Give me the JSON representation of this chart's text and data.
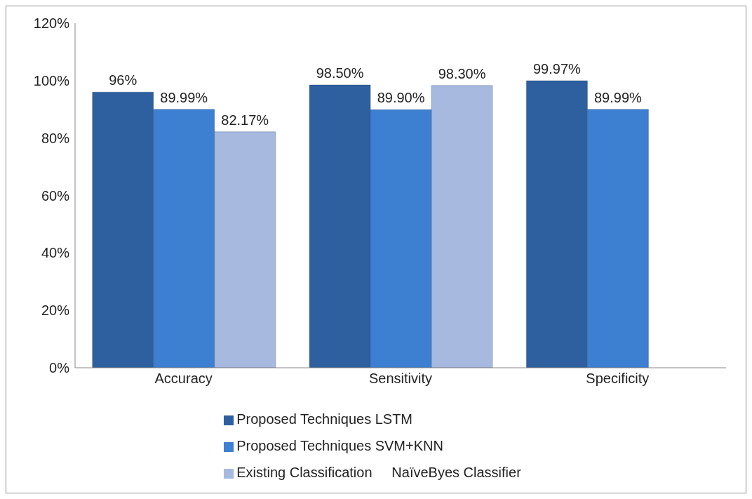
{
  "chart_data": {
    "type": "bar",
    "categories": [
      "Accuracy",
      "Sensitivity",
      "Specificity"
    ],
    "series": [
      {
        "name": "Proposed Techniques LSTM",
        "color": "#2e5f9e",
        "values": [
          96,
          98.5,
          99.97
        ],
        "value_labels": [
          "96%",
          "98.50%",
          "99.97%"
        ]
      },
      {
        "name": "Proposed Techniques SVM+KNN",
        "color": "#3d7fd0",
        "values": [
          89.99,
          89.9,
          89.99
        ],
        "value_labels": [
          "89.99%",
          "89.90%",
          "89.99%"
        ]
      },
      {
        "name": "Existing Classification     NaïveByes Classifier",
        "color": "#a7b9de",
        "values": [
          82.17,
          98.3,
          null
        ],
        "value_labels": [
          "82.17%",
          "98.30%",
          null
        ]
      }
    ],
    "ylim": [
      0,
      120
    ],
    "yticks": [
      {
        "value": 0,
        "label": "0%"
      },
      {
        "value": 20,
        "label": "20%"
      },
      {
        "value": 40,
        "label": "40%"
      },
      {
        "value": 60,
        "label": "60%"
      },
      {
        "value": 80,
        "label": "80%"
      },
      {
        "value": 100,
        "label": "100%"
      },
      {
        "value": 120,
        "label": "120%"
      }
    ],
    "grid": false,
    "legend": "bottom"
  }
}
